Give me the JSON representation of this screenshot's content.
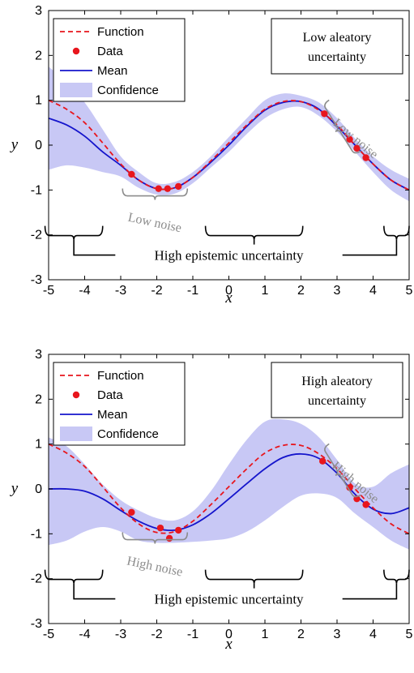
{
  "chart_data": [
    {
      "type": "line",
      "xlabel": "x",
      "ylabel": "y",
      "xlim": [
        -5,
        5
      ],
      "ylim": [
        -3,
        3
      ],
      "xticks": [
        "-5",
        "-4",
        "-3",
        "-2",
        "-1",
        "0",
        "1",
        "2",
        "3",
        "4",
        "5"
      ],
      "yticks": [
        "-3",
        "-2",
        "-1",
        "0",
        "1",
        "2",
        "3"
      ],
      "legend": [
        "Function",
        "Data",
        "Mean",
        "Confidence"
      ],
      "legend_position": "top-left",
      "box_text": [
        "Low aleatory",
        "uncertainty"
      ],
      "noise_labels": [
        "Low noise",
        "Low noise"
      ],
      "epistemic_label": "High epistemic uncertainty",
      "colors": {
        "function": "#e8161d",
        "data": "#e8161d",
        "mean": "#1515cc",
        "confidence": "#c8c8f5"
      },
      "data_points": {
        "x": [
          -2.7,
          -1.95,
          -1.7,
          -1.4,
          2.65,
          3.35,
          3.55,
          3.8
        ],
        "y": [
          -0.65,
          -0.97,
          -0.97,
          -0.92,
          0.7,
          0.13,
          -0.07,
          -0.28
        ]
      },
      "function": {
        "x": [
          -5,
          -4.5,
          -4,
          -3.5,
          -3,
          -2.5,
          -2,
          -1.5,
          -1,
          -0.5,
          0,
          0.5,
          1,
          1.5,
          2,
          2.5,
          3,
          3.5,
          4,
          4.5,
          5
        ],
        "y": [
          1.0,
          0.8,
          0.5,
          0.05,
          -0.42,
          -0.78,
          -0.97,
          -0.95,
          -0.72,
          -0.35,
          0.05,
          0.45,
          0.8,
          0.97,
          0.97,
          0.78,
          0.45,
          0.0,
          -0.42,
          -0.78,
          -1.0
        ]
      },
      "mean": {
        "x": [
          -5,
          -4.5,
          -4,
          -3.5,
          -3,
          -2.5,
          -2,
          -1.5,
          -1,
          -0.5,
          0,
          0.5,
          1,
          1.5,
          2,
          2.5,
          3,
          3.5,
          4,
          4.5,
          5
        ],
        "y": [
          0.6,
          0.45,
          0.2,
          -0.15,
          -0.45,
          -0.78,
          -0.97,
          -0.95,
          -0.72,
          -0.38,
          0.0,
          0.42,
          0.78,
          0.95,
          0.97,
          0.8,
          0.42,
          0.0,
          -0.42,
          -0.78,
          -1.0
        ]
      },
      "confidence": {
        "x": [
          -5,
          -4.5,
          -4,
          -3.5,
          -3,
          -2.5,
          -2,
          -1.5,
          -1,
          -0.5,
          0,
          0.5,
          1,
          1.5,
          2,
          2.5,
          3,
          3.5,
          4,
          4.5,
          5
        ],
        "upper": [
          1.75,
          1.4,
          0.95,
          0.35,
          -0.25,
          -0.6,
          -0.85,
          -0.82,
          -0.6,
          -0.25,
          0.18,
          0.6,
          1.0,
          1.15,
          1.1,
          0.95,
          0.6,
          0.15,
          -0.25,
          -0.55,
          -0.75
        ],
        "lower": [
          -0.55,
          -0.45,
          -0.5,
          -0.6,
          -0.7,
          -0.95,
          -1.1,
          -1.08,
          -0.85,
          -0.5,
          -0.15,
          0.25,
          0.6,
          0.8,
          0.85,
          0.65,
          0.3,
          -0.15,
          -0.6,
          -1.0,
          -1.25
        ]
      }
    },
    {
      "type": "line",
      "xlabel": "x",
      "ylabel": "y",
      "xlim": [
        -5,
        5
      ],
      "ylim": [
        -3,
        3
      ],
      "xticks": [
        "-5",
        "-4",
        "-3",
        "-2",
        "-1",
        "0",
        "1",
        "2",
        "3",
        "4",
        "5"
      ],
      "yticks": [
        "-3",
        "-2",
        "-1",
        "0",
        "1",
        "2",
        "3"
      ],
      "legend": [
        "Function",
        "Data",
        "Mean",
        "Confidence"
      ],
      "legend_position": "top-left",
      "box_text": [
        "High aleatory",
        "uncertainty"
      ],
      "noise_labels": [
        "High noise",
        "High noise"
      ],
      "epistemic_label": "High epistemic uncertainty",
      "colors": {
        "function": "#e8161d",
        "data": "#e8161d",
        "mean": "#1515cc",
        "confidence": "#c8c8f5"
      },
      "data_points": {
        "x": [
          -2.7,
          -1.9,
          -1.65,
          -1.4,
          2.6,
          3.35,
          3.55,
          3.8
        ],
        "y": [
          -0.52,
          -0.87,
          -1.1,
          -0.92,
          0.62,
          0.03,
          -0.22,
          -0.35
        ]
      },
      "function": {
        "x": [
          -5,
          -4.5,
          -4,
          -3.5,
          -3,
          -2.5,
          -2,
          -1.5,
          -1,
          -0.5,
          0,
          0.5,
          1,
          1.5,
          2,
          2.5,
          3,
          3.5,
          4,
          4.5,
          5
        ],
        "y": [
          1.0,
          0.8,
          0.5,
          0.05,
          -0.42,
          -0.78,
          -0.97,
          -0.95,
          -0.72,
          -0.35,
          0.05,
          0.45,
          0.8,
          0.97,
          0.97,
          0.78,
          0.45,
          0.0,
          -0.42,
          -0.78,
          -1.0
        ]
      },
      "mean": {
        "x": [
          -5,
          -4.5,
          -4,
          -3.5,
          -3,
          -2.5,
          -2,
          -1.5,
          -1,
          -0.5,
          0,
          0.5,
          1,
          1.5,
          2,
          2.5,
          3,
          3.5,
          4,
          4.5,
          5
        ],
        "y": [
          0.0,
          0.0,
          -0.05,
          -0.22,
          -0.48,
          -0.72,
          -0.88,
          -0.92,
          -0.8,
          -0.55,
          -0.22,
          0.12,
          0.45,
          0.7,
          0.78,
          0.68,
          0.35,
          -0.12,
          -0.45,
          -0.55,
          -0.42
        ]
      },
      "confidence": {
        "x": [
          -5,
          -4.5,
          -4,
          -3.5,
          -3,
          -2.5,
          -2,
          -1.5,
          -1,
          -0.5,
          0,
          0.5,
          1,
          1.5,
          2,
          2.5,
          3,
          3.5,
          4,
          4.5,
          5
        ],
        "upper": [
          1.15,
          0.95,
          0.55,
          0.1,
          -0.25,
          -0.48,
          -0.65,
          -0.7,
          -0.5,
          -0.05,
          0.55,
          1.1,
          1.5,
          1.55,
          1.45,
          1.15,
          0.65,
          0.12,
          0.05,
          0.35,
          0.55
        ],
        "lower": [
          -1.25,
          -1.15,
          -0.95,
          -0.85,
          -0.95,
          -1.15,
          -1.2,
          -1.2,
          -1.18,
          -1.15,
          -1.1,
          -0.95,
          -0.7,
          -0.4,
          -0.15,
          -0.1,
          -0.2,
          -0.55,
          -0.85,
          -1.15,
          -1.35
        ]
      }
    }
  ]
}
